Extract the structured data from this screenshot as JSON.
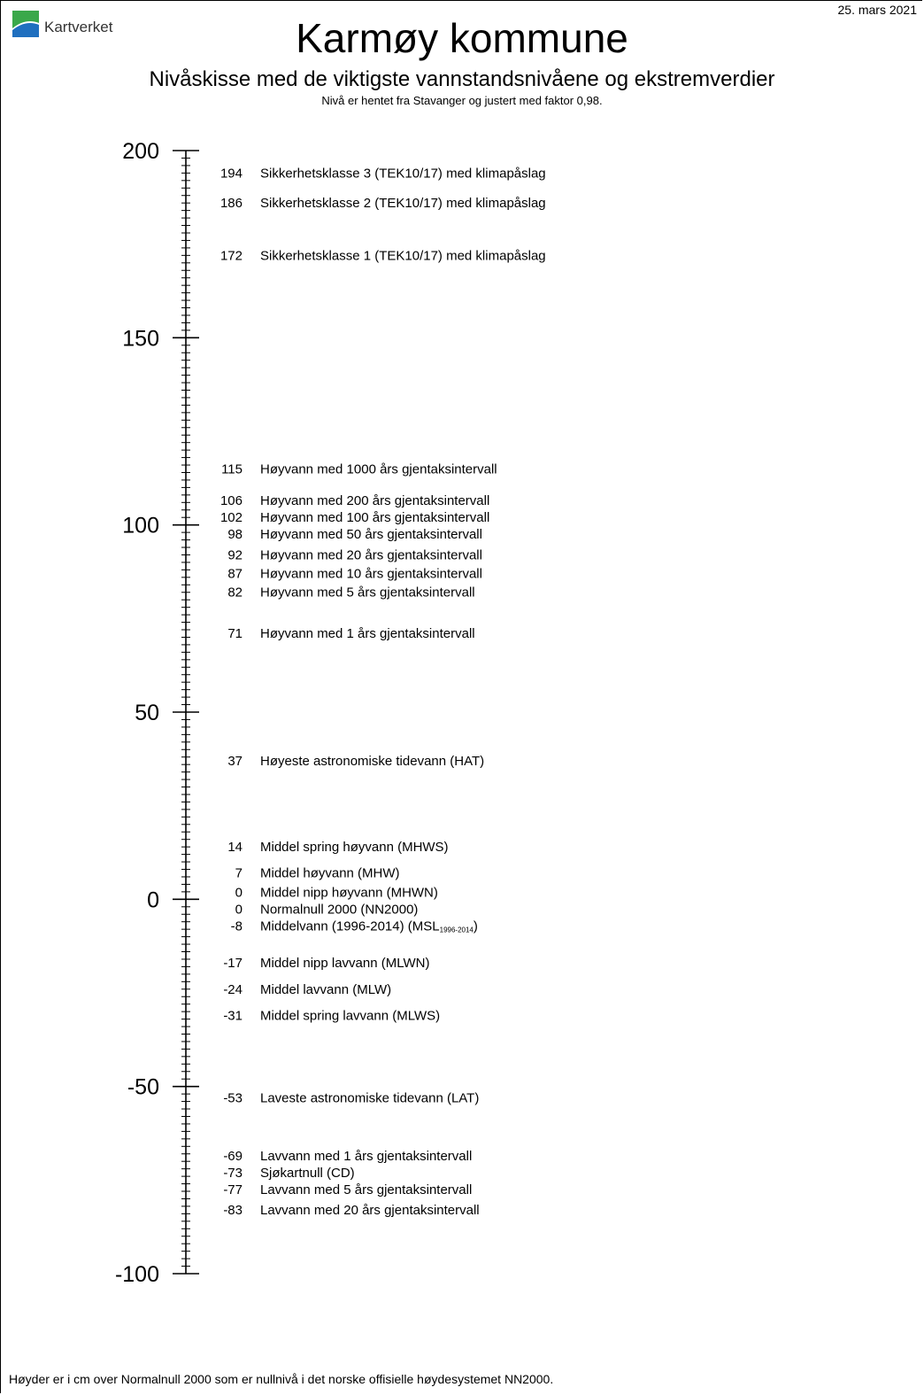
{
  "header": {
    "date": "25. mars 2021",
    "logo_text": "Kartverket",
    "title": "Karmøy kommune",
    "subtitle": "Nivåskisse med de viktigste vannstandsnivåene og ekstremverdier",
    "note": "Nivå er hentet fra Stavanger og justert med faktor 0,98."
  },
  "footer": {
    "text": "Høyder er i cm over Normalnull 2000 som er nullnivå i det norske offisielle høydesystemet NN2000."
  },
  "colors": {
    "logo_green": "#3aa84a",
    "logo_blue": "#1f6fbf"
  },
  "chart_data": {
    "type": "scale",
    "title": "Karmøy kommune",
    "ylim": [
      -100,
      200
    ],
    "major_ticks": [
      -100,
      -50,
      0,
      50,
      100,
      150,
      200
    ],
    "minor_tick_step": 2,
    "unit": "cm",
    "levels": [
      {
        "value": 194,
        "label": "Sikkerhetsklasse 3 (TEK10/17) med klimapåslag"
      },
      {
        "value": 186,
        "label": "Sikkerhetsklasse 2 (TEK10/17) med klimapåslag"
      },
      {
        "value": 172,
        "label": "Sikkerhetsklasse 1 (TEK10/17) med klimapåslag"
      },
      {
        "value": 115,
        "label": "Høyvann med 1000 års gjentaksintervall"
      },
      {
        "value": 106,
        "label": "Høyvann med 200 års gjentaksintervall"
      },
      {
        "value": 102,
        "label": "Høyvann med 100 års gjentaksintervall"
      },
      {
        "value": 98,
        "label": "Høyvann med 50 års gjentaksintervall"
      },
      {
        "value": 92,
        "label": "Høyvann med 20 års gjentaksintervall"
      },
      {
        "value": 87,
        "label": "Høyvann med 10 års gjentaksintervall"
      },
      {
        "value": 82,
        "label": "Høyvann med 5 års gjentaksintervall"
      },
      {
        "value": 71,
        "label": "Høyvann med 1 års gjentaksintervall"
      },
      {
        "value": 37,
        "label": "Høyeste astronomiske tidevann (HAT)"
      },
      {
        "value": 14,
        "label": "Middel spring høyvann (MHWS)"
      },
      {
        "value": 7,
        "label": "Middel høyvann (MHW)"
      },
      {
        "value": 0,
        "label": "Middel nipp høyvann (MHWN)"
      },
      {
        "value": 0,
        "label": "Normalnull 2000 (NN2000)"
      },
      {
        "value": -8,
        "label": "Middelvann (1996-2014) (MSL",
        "sub": "1996-2014",
        "suffix": ")"
      },
      {
        "value": -17,
        "label": "Middel nipp lavvann (MLWN)"
      },
      {
        "value": -24,
        "label": "Middel lavvann (MLW)"
      },
      {
        "value": -31,
        "label": "Middel spring lavvann (MLWS)"
      },
      {
        "value": -53,
        "label": "Laveste astronomiske tidevann (LAT)"
      },
      {
        "value": -69,
        "label": "Lavvann med 1 års gjentaksintervall"
      },
      {
        "value": -73,
        "label": "Sjøkartnull (CD)"
      },
      {
        "value": -77,
        "label": "Lavvann med 5 års gjentaksintervall"
      },
      {
        "value": -83,
        "label": "Lavvann med 20 års gjentaksintervall"
      }
    ]
  }
}
